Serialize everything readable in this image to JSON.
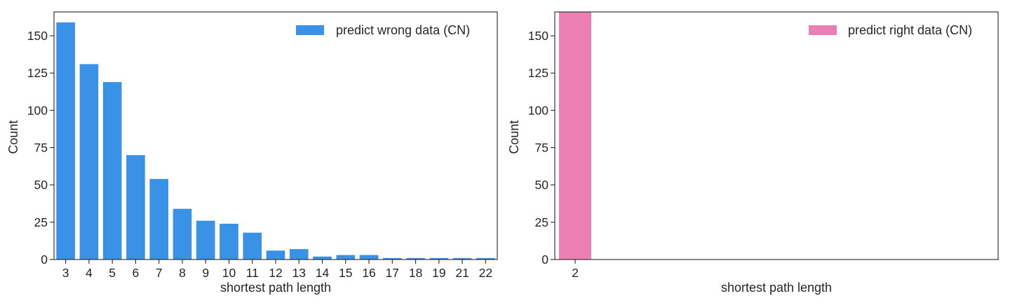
{
  "chart_data": [
    {
      "type": "bar",
      "xlabel": "shortest path length",
      "ylabel": "Count",
      "ylim": [
        0,
        166
      ],
      "yticks": [
        0,
        25,
        50,
        75,
        100,
        125,
        150
      ],
      "grid": false,
      "legend_position": "top-right",
      "categories": [
        "3",
        "4",
        "5",
        "6",
        "7",
        "8",
        "9",
        "10",
        "11",
        "12",
        "13",
        "14",
        "15",
        "16",
        "17",
        "18",
        "19",
        "21",
        "22"
      ],
      "series": [
        {
          "name": "predict wrong data (CN)",
          "color": "#3a92e6",
          "values": [
            159,
            131,
            119,
            70,
            54,
            34,
            26,
            24,
            18,
            6,
            7,
            2,
            3,
            3,
            1,
            1,
            1,
            1,
            1
          ]
        }
      ]
    },
    {
      "type": "bar",
      "xlabel": "shortest path length",
      "ylabel": "Count",
      "ylim": [
        0,
        166
      ],
      "yticks": [
        0,
        25,
        50,
        75,
        100,
        125,
        150
      ],
      "grid": false,
      "legend_position": "top-right",
      "categories": [
        "2"
      ],
      "series": [
        {
          "name": "predict right data (CN)",
          "color": "#ec7eb6",
          "values": [
            166
          ]
        }
      ]
    }
  ]
}
